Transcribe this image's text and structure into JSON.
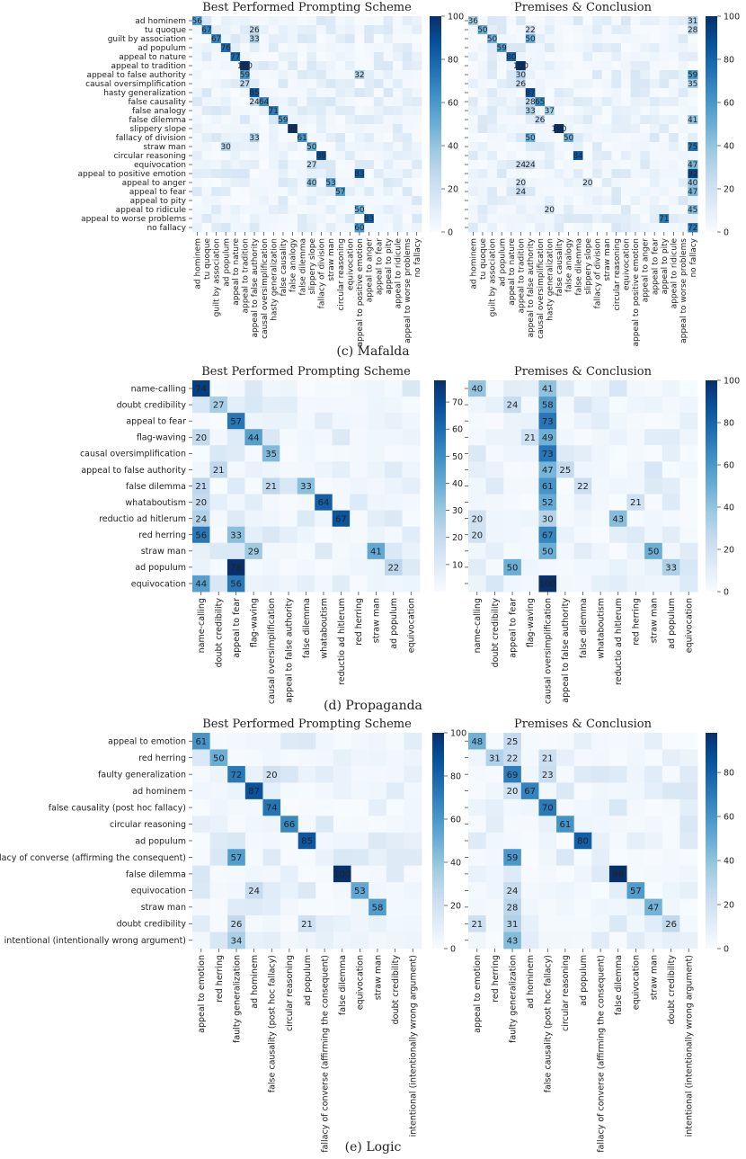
{
  "colors": {
    "low": "#f7fbff",
    "high": "#08306b",
    "text_dark": "#222222",
    "text_light": "#ffffff"
  },
  "chart_data": [
    {
      "type": "heatmap",
      "section_caption": "(c) Mafalda",
      "labels": [
        "ad hominem",
        "tu quoque",
        "guilt by association",
        "ad populum",
        "appeal to nature",
        "appeal to tradition",
        "appeal to false authority",
        "causal oversimplification",
        "hasty generalization",
        "false causality",
        "false analogy",
        "false dilemma",
        "slippery slope",
        "fallacy of division",
        "straw man",
        "circular reasoning",
        "equivocation",
        "appeal to positive emotion",
        "appeal to anger",
        "appeal to fear",
        "appeal to pity",
        "appeal to ridicule",
        "appeal to worse problems",
        "no fallacy"
      ],
      "panels": [
        {
          "title": "Best Performed Prompting Scheme",
          "colorbar": {
            "min": 0,
            "max": 100,
            "ticks": [
              0,
              20,
              40,
              60,
              80,
              100
            ]
          },
          "annotations": [
            [
              0,
              0,
              56
            ],
            [
              1,
              1,
              67
            ],
            [
              1,
              6,
              26
            ],
            [
              2,
              2,
              67
            ],
            [
              2,
              6,
              33
            ],
            [
              3,
              3,
              76
            ],
            [
              4,
              4,
              77
            ],
            [
              5,
              5,
              100
            ],
            [
              6,
              5,
              59
            ],
            [
              6,
              17,
              32
            ],
            [
              7,
              5,
              27
            ],
            [
              8,
              6,
              85
            ],
            [
              9,
              6,
              24
            ],
            [
              9,
              7,
              64
            ],
            [
              10,
              8,
              71
            ],
            [
              11,
              9,
              59
            ],
            [
              12,
              10,
              99
            ],
            [
              13,
              6,
              33
            ],
            [
              13,
              11,
              61
            ],
            [
              14,
              3,
              30
            ],
            [
              14,
              12,
              50
            ],
            [
              15,
              13,
              89
            ],
            [
              16,
              12,
              27
            ],
            [
              17,
              17,
              83
            ],
            [
              18,
              12,
              40
            ],
            [
              18,
              14,
              53
            ],
            [
              19,
              15,
              57
            ],
            [
              21,
              17,
              50
            ],
            [
              22,
              18,
              83
            ],
            [
              23,
              17,
              60
            ]
          ]
        },
        {
          "title": "Premises & Conclusion",
          "colorbar": {
            "min": 0,
            "max": 100,
            "ticks": [
              0,
              20,
              40,
              60,
              80,
              100
            ]
          },
          "annotations": [
            [
              0,
              0,
              36
            ],
            [
              0,
              23,
              31
            ],
            [
              1,
              1,
              50
            ],
            [
              1,
              6,
              22
            ],
            [
              1,
              23,
              28
            ],
            [
              2,
              2,
              50
            ],
            [
              2,
              6,
              50
            ],
            [
              3,
              3,
              59
            ],
            [
              4,
              4,
              80
            ],
            [
              5,
              5,
              100
            ],
            [
              6,
              5,
              30
            ],
            [
              6,
              23,
              59
            ],
            [
              7,
              5,
              26
            ],
            [
              7,
              23,
              35
            ],
            [
              8,
              6,
              87
            ],
            [
              9,
              6,
              28
            ],
            [
              9,
              7,
              65
            ],
            [
              10,
              6,
              33
            ],
            [
              10,
              8,
              37
            ],
            [
              11,
              7,
              26
            ],
            [
              11,
              23,
              41
            ],
            [
              12,
              9,
              100
            ],
            [
              13,
              6,
              50
            ],
            [
              13,
              10,
              50
            ],
            [
              14,
              23,
              75
            ],
            [
              15,
              11,
              84
            ],
            [
              16,
              5,
              24
            ],
            [
              16,
              6,
              24
            ],
            [
              16,
              23,
              47
            ],
            [
              17,
              23,
              92
            ],
            [
              18,
              5,
              20
            ],
            [
              18,
              12,
              20
            ],
            [
              18,
              23,
              40
            ],
            [
              19,
              5,
              24
            ],
            [
              19,
              23,
              47
            ],
            [
              21,
              8,
              20
            ],
            [
              21,
              23,
              45
            ],
            [
              22,
              20,
              71
            ],
            [
              23,
              23,
              72
            ]
          ]
        }
      ]
    },
    {
      "type": "heatmap",
      "section_caption": "(d) Propaganda",
      "labels": [
        "name-calling",
        "doubt credibility",
        "appeal to fear",
        "flag-waving",
        "causal oversimplification",
        "appeal to false authority",
        "false dilemma",
        "whataboutism",
        "reductio ad hitlerum",
        "red herring",
        "straw man",
        "ad populum",
        "equivocation"
      ],
      "panels": [
        {
          "title": "Best Performed Prompting Scheme",
          "colorbar": {
            "min": 0,
            "max": 78,
            "ticks": [
              10,
              20,
              30,
              40,
              50,
              60,
              70
            ]
          },
          "annotations": [
            [
              0,
              0,
              74
            ],
            [
              1,
              1,
              27
            ],
            [
              2,
              2,
              57
            ],
            [
              3,
              0,
              20
            ],
            [
              3,
              3,
              44
            ],
            [
              4,
              4,
              35
            ],
            [
              5,
              1,
              21
            ],
            [
              6,
              0,
              21
            ],
            [
              6,
              4,
              21
            ],
            [
              6,
              6,
              33
            ],
            [
              7,
              0,
              20
            ],
            [
              7,
              7,
              64
            ],
            [
              8,
              0,
              24
            ],
            [
              8,
              8,
              67
            ],
            [
              9,
              0,
              56
            ],
            [
              9,
              2,
              33
            ],
            [
              10,
              3,
              29
            ],
            [
              10,
              10,
              41
            ],
            [
              11,
              2,
              78
            ],
            [
              11,
              11,
              22
            ],
            [
              12,
              0,
              44
            ],
            [
              12,
              2,
              56
            ]
          ]
        },
        {
          "title": "Premises & Conclusion",
          "colorbar": {
            "min": 0,
            "max": 100,
            "ticks": [
              0,
              20,
              40,
              60,
              80,
              100
            ]
          },
          "annotations": [
            [
              0,
              0,
              40
            ],
            [
              0,
              4,
              41
            ],
            [
              1,
              2,
              24
            ],
            [
              1,
              4,
              58
            ],
            [
              2,
              4,
              73
            ],
            [
              3,
              3,
              21
            ],
            [
              3,
              4,
              49
            ],
            [
              4,
              4,
              73
            ],
            [
              5,
              4,
              47
            ],
            [
              5,
              5,
              25
            ],
            [
              6,
              4,
              61
            ],
            [
              6,
              6,
              22
            ],
            [
              7,
              4,
              52
            ],
            [
              7,
              9,
              21
            ],
            [
              8,
              0,
              20
            ],
            [
              8,
              4,
              30
            ],
            [
              8,
              8,
              43
            ],
            [
              9,
              0,
              20
            ],
            [
              9,
              4,
              67
            ],
            [
              10,
              4,
              50
            ],
            [
              10,
              10,
              50
            ],
            [
              11,
              2,
              50
            ],
            [
              11,
              11,
              33
            ],
            [
              12,
              4,
              100
            ]
          ]
        }
      ]
    },
    {
      "type": "heatmap",
      "section_caption": "(e) Logic",
      "labels": [
        "appeal to emotion",
        "red herring",
        "faulty generalization",
        "ad hominem",
        "false causality (post hoc fallacy)",
        "circular reasoning",
        "ad populum",
        "fallacy of converse (affirming the consequent)",
        "false dilemma",
        "equivocation",
        "straw man",
        "doubt credibility",
        "intentional (intentionally wrong argument)"
      ],
      "panels": [
        {
          "title": "Best Performed Prompting Scheme",
          "colorbar": {
            "min": 0,
            "max": 100,
            "ticks": [
              0,
              20,
              40,
              60,
              80,
              100
            ]
          },
          "annotations": [
            [
              0,
              0,
              61
            ],
            [
              1,
              1,
              50
            ],
            [
              2,
              2,
              72
            ],
            [
              2,
              4,
              20
            ],
            [
              3,
              3,
              87
            ],
            [
              4,
              4,
              74
            ],
            [
              5,
              5,
              66
            ],
            [
              6,
              6,
              85
            ],
            [
              7,
              2,
              57
            ],
            [
              8,
              8,
              100
            ],
            [
              9,
              3,
              24
            ],
            [
              9,
              9,
              53
            ],
            [
              10,
              10,
              58
            ],
            [
              11,
              2,
              26
            ],
            [
              11,
              6,
              21
            ],
            [
              12,
              2,
              34
            ]
          ]
        },
        {
          "title": "Premises & Conclusion",
          "colorbar": {
            "min": 0,
            "max": 98,
            "ticks": [
              0,
              20,
              40,
              60,
              80
            ]
          },
          "annotations": [
            [
              0,
              0,
              48
            ],
            [
              0,
              2,
              25
            ],
            [
              1,
              1,
              31
            ],
            [
              1,
              2,
              22
            ],
            [
              1,
              4,
              21
            ],
            [
              2,
              2,
              69
            ],
            [
              2,
              4,
              23
            ],
            [
              3,
              2,
              20
            ],
            [
              3,
              3,
              67
            ],
            [
              4,
              4,
              70
            ],
            [
              5,
              5,
              61
            ],
            [
              6,
              6,
              80
            ],
            [
              7,
              2,
              59
            ],
            [
              8,
              8,
              98
            ],
            [
              9,
              2,
              24
            ],
            [
              9,
              9,
              57
            ],
            [
              10,
              2,
              28
            ],
            [
              10,
              10,
              47
            ],
            [
              11,
              0,
              21
            ],
            [
              11,
              2,
              31
            ],
            [
              11,
              11,
              26
            ],
            [
              12,
              2,
              43
            ]
          ]
        }
      ]
    }
  ]
}
